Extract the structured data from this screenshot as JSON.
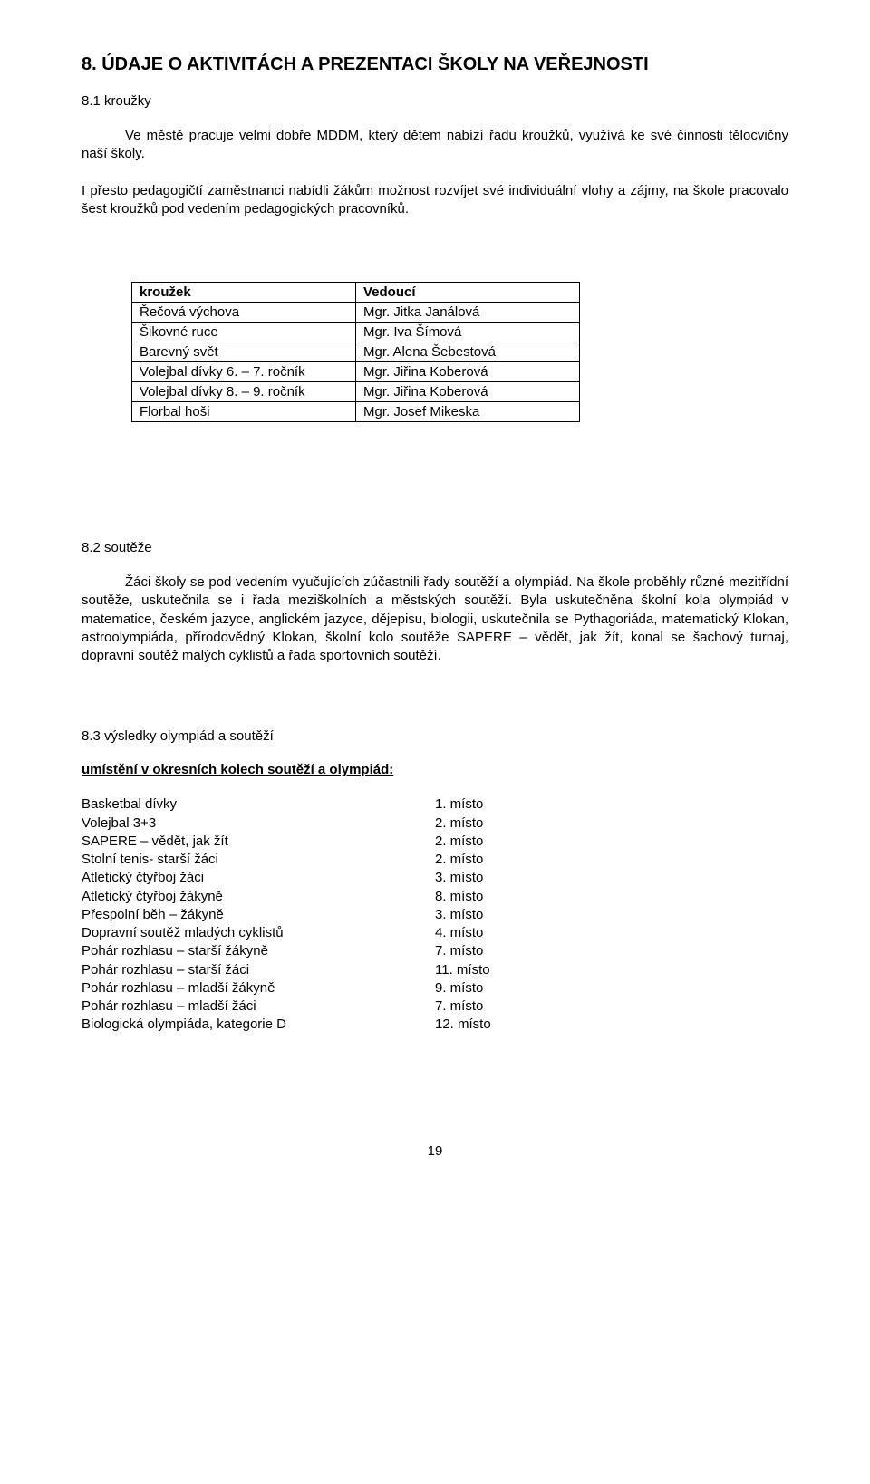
{
  "heading": "8. ÚDAJE O AKTIVITÁCH A PREZENTACI ŠKOLY NA VEŘEJNOSTI",
  "s81": {
    "title": "8.1 kroužky",
    "p1": "Ve městě pracuje velmi dobře MDDM, který dětem nabízí řadu kroužků, využívá ke své činnosti tělocvičny naší školy.",
    "p2": "I přesto pedagogičtí zaměstnanci nabídli žákům možnost rozvíjet své individuální vlohy a zájmy, na škole pracovalo šest kroužků pod vedením pedagogických pracovníků."
  },
  "table": {
    "header_left": "kroužek",
    "header_right": "Vedoucí",
    "rows": [
      {
        "l": "Řečová výchova",
        "r": "Mgr. Jitka Janálová"
      },
      {
        "l": "Šikovné ruce",
        "r": "Mgr. Iva Šímová"
      },
      {
        "l": "Barevný svět",
        "r": "Mgr. Alena Šebestová"
      },
      {
        "l": "Volejbal dívky 6. – 7. ročník",
        "r": "Mgr. Jiřina Koberová"
      },
      {
        "l": "Volejbal dívky 8. – 9. ročník",
        "r": "Mgr. Jiřina Koberová"
      },
      {
        "l": "Florbal hoši",
        "r": "Mgr. Josef Mikeska"
      }
    ],
    "col_widths": [
      "230px",
      "230px"
    ]
  },
  "s82": {
    "title": "8.2 soutěže",
    "p1": "Žáci školy se pod vedením vyučujících zúčastnili řady soutěží a olympiád. Na škole proběhly různé mezitřídní soutěže, uskutečnila se i řada meziškolních a městských soutěží. Byla uskutečněna školní kola olympiád v matematice,  českém jazyce, anglickém jazyce, dějepisu, biologii, uskutečnila se Pythagoriáda, matematický Klokan, astroolympiáda, přírodovědný Klokan, školní kolo soutěže SAPERE – vědět, jak žít, konal se šachový turnaj, dopravní soutěž malých cyklistů a řada sportovních soutěží."
  },
  "s83": {
    "title": "8.3 výsledky olympiád a soutěží",
    "subtitle": "umístění v okresních kolech soutěží a olympiád:",
    "results": [
      {
        "label": "Basketbal dívky",
        "place": "1. místo"
      },
      {
        "label": "Volejbal 3+3",
        "place": "2. místo"
      },
      {
        "label": "SAPERE – vědět, jak žít",
        "place": "2. místo"
      },
      {
        "label": "Stolní tenis- starší žáci",
        "place": "2. místo"
      },
      {
        "label": "Atletický čtyřboj žáci",
        "place": "3. místo"
      },
      {
        "label": "Atletický čtyřboj žákyně",
        "place": "8. místo"
      },
      {
        "label": "Přespolní běh – žákyně",
        "place": "3. místo"
      },
      {
        "label": "Dopravní soutěž mladých cyklistů",
        "place": "4. místo"
      },
      {
        "label": "Pohár rozhlasu – starší žákyně",
        "place": "7. místo"
      },
      {
        "label": "Pohár rozhlasu – starší žáci",
        "place": "11. místo"
      },
      {
        "label": "Pohár rozhlasu – mladší žákyně",
        "place": "9. místo"
      },
      {
        "label": "Pohár rozhlasu – mladší žáci",
        "place": "7. místo"
      },
      {
        "label": "Biologická olympiáda, kategorie D",
        "place": "12. místo"
      }
    ]
  },
  "page_number": "19"
}
